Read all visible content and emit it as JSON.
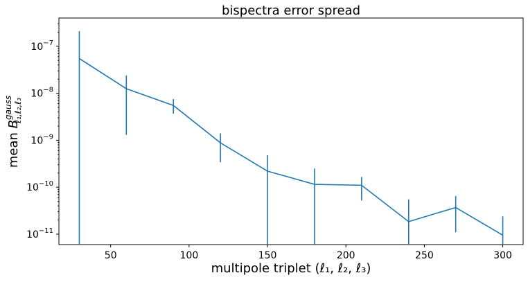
{
  "chart_data": {
    "type": "line",
    "title": "bispectra error spread",
    "xlabel": "multipole triplet (ℓ₁, ℓ₂, ℓ₃)",
    "ylabel": {
      "prefix": "mean ",
      "base": "B",
      "superscript": "gauss",
      "subscript": "ℓ₁,ℓ₂,ℓ₃"
    },
    "xlim": [
      17,
      313
    ],
    "ylim": [
      6e-12,
      4e-07
    ],
    "yscale": "log",
    "x_ticks": [
      50,
      100,
      150,
      200,
      250,
      300
    ],
    "y_ticks": [
      {
        "value": 1e-11,
        "base": "10",
        "exp": "−11"
      },
      {
        "value": 1e-10,
        "base": "10",
        "exp": "−10"
      },
      {
        "value": 1e-09,
        "base": "10",
        "exp": "−9"
      },
      {
        "value": 1e-08,
        "base": "10",
        "exp": "−8"
      },
      {
        "value": 1e-07,
        "base": "10",
        "exp": "−7"
      }
    ],
    "grid": false,
    "color": "#1f77b4",
    "series": [
      {
        "x": [
          30,
          60,
          90,
          120,
          150,
          180,
          210,
          240,
          270,
          300
        ],
        "y": [
          5.5e-08,
          1.25e-08,
          5.5e-09,
          8.8e-10,
          2.2e-10,
          1.15e-10,
          1.1e-10,
          1.85e-11,
          3.7e-11,
          9.5e-12
        ],
        "err_low": [
          6e-12,
          1.3e-09,
          3.7e-09,
          3.4e-10,
          6e-12,
          6e-12,
          5.2e-11,
          6e-12,
          1.1e-11,
          6e-12
        ],
        "err_high": [
          2.1e-07,
          2.4e-08,
          7.5e-09,
          1.4e-09,
          4.8e-10,
          2.5e-10,
          1.65e-10,
          5.5e-11,
          6.5e-11,
          2.4e-11
        ]
      }
    ]
  }
}
